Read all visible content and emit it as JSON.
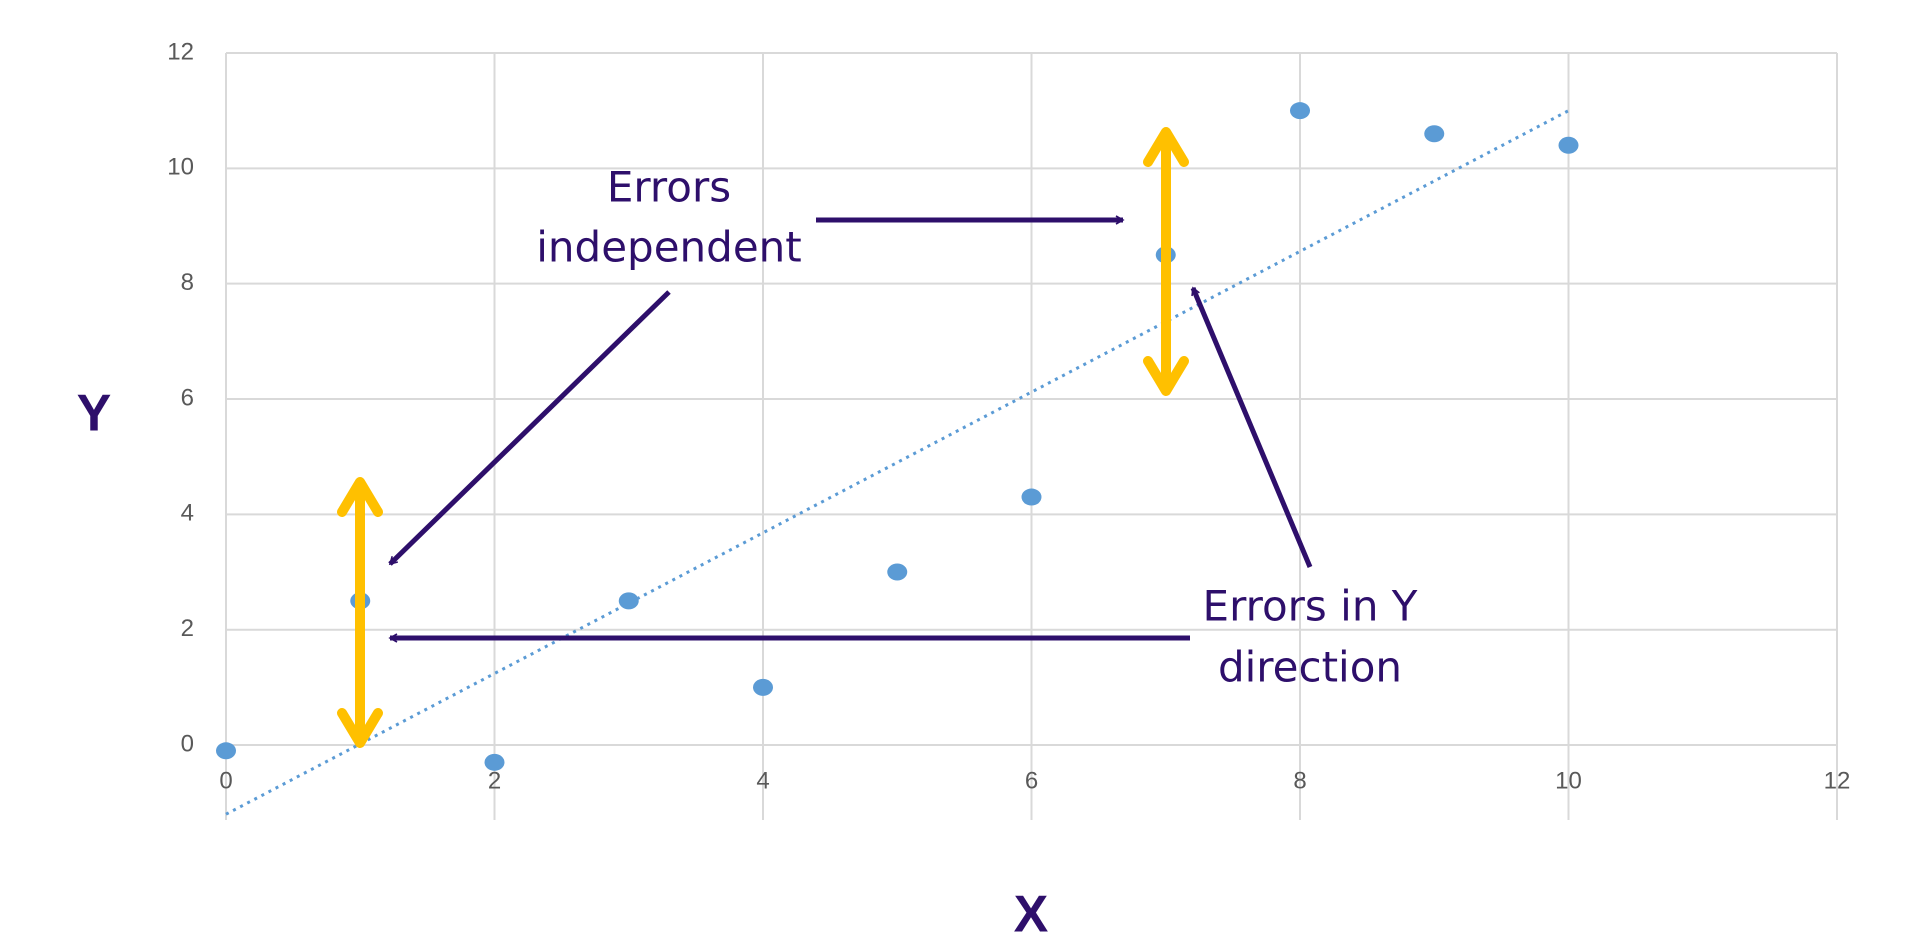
{
  "chart_data": {
    "type": "scatter",
    "x_label": "X",
    "y_label": "Y",
    "x": [
      0,
      1,
      2,
      3,
      4,
      5,
      6,
      7,
      8,
      9,
      10
    ],
    "series": [
      {
        "color": "#5b9bd5",
        "values": [
          -0.1,
          2.5,
          -0.3,
          2.5,
          1.0,
          3.0,
          4.3,
          8.5,
          11,
          10.6,
          10.4
        ]
      }
    ],
    "trendline": {
      "x": [
        0,
        10
      ],
      "values": [
        -1.2,
        11
      ],
      "color": "#5b9bd5"
    },
    "xlim": [
      0,
      12
    ],
    "ylim": [
      -1.3,
      12
    ],
    "xticks": [
      0,
      2,
      4,
      6,
      8,
      10,
      12
    ],
    "yticks": [
      0,
      2,
      4,
      6,
      8,
      10,
      12
    ],
    "grid": true,
    "annotations": [
      {
        "lines": [
          "Errors",
          "independent"
        ]
      },
      {
        "lines": [
          "Errors in Y",
          "direction"
        ]
      }
    ]
  }
}
